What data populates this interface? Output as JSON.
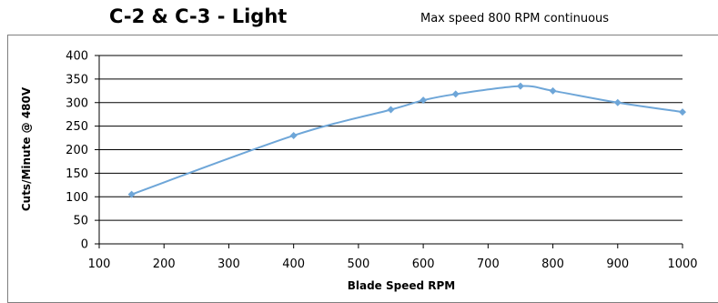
{
  "chart_data": {
    "type": "line",
    "title": "C-2 & C-3 - Light",
    "subtitle": "Max speed 800 RPM continuous",
    "xlabel": "Blade Speed RPM",
    "ylabel": "Cuts/Minute @ 480V",
    "xlim": [
      100,
      1000
    ],
    "ylim": [
      0,
      400
    ],
    "x_ticks": [
      100,
      200,
      300,
      400,
      500,
      600,
      700,
      800,
      900,
      1000
    ],
    "y_ticks": [
      0,
      50,
      100,
      150,
      200,
      250,
      300,
      350,
      400
    ],
    "grid": "horizontal",
    "legend": "none",
    "series": [
      {
        "color": "#6ea6d8",
        "x": [
          150,
          400,
          550,
          600,
          650,
          750,
          800,
          900,
          1000
        ],
        "y": [
          105,
          230,
          285,
          305,
          318,
          335,
          325,
          300,
          280
        ]
      }
    ]
  }
}
